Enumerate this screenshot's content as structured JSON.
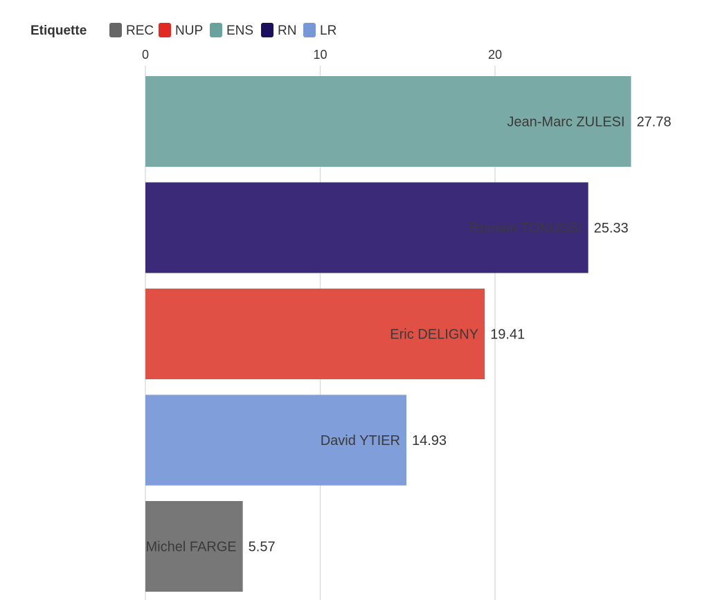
{
  "chart_data": {
    "type": "bar",
    "orientation": "horizontal",
    "legend": {
      "title": "Etiquette",
      "placement": "top-left",
      "entries": [
        {
          "label": "REC",
          "color": "#666666"
        },
        {
          "label": "NUP",
          "color": "#e32a22"
        },
        {
          "label": "ENS",
          "color": "#6aa39e"
        },
        {
          "label": "RN",
          "color": "#1c0f5e"
        },
        {
          "label": "LR",
          "color": "#7798d8"
        }
      ]
    },
    "xlim": [
      0,
      27.78
    ],
    "x_ticks": [
      0,
      10,
      20
    ],
    "x_tick_labels": [
      "0",
      "10",
      "20"
    ],
    "x_axis_position": "top",
    "grid": true,
    "categories": [
      "Jean-Marc ZULESI",
      "Romain TONUSSI",
      "Eric DELIGNY",
      "David YTIER",
      "Michel FARGE"
    ],
    "values": [
      27.78,
      25.33,
      19.41,
      14.93,
      5.57
    ],
    "value_labels": [
      "27.78",
      "25.33",
      "19.41",
      "14.93",
      "5.57"
    ],
    "bar_groups": [
      "ENS",
      "RN",
      "NUP",
      "LR",
      "REC"
    ],
    "bar_colors": [
      "#7aaaa6",
      "#3b2a78",
      "#e05045",
      "#809fda",
      "#777777"
    ],
    "title": "",
    "xlabel": "",
    "ylabel": ""
  }
}
